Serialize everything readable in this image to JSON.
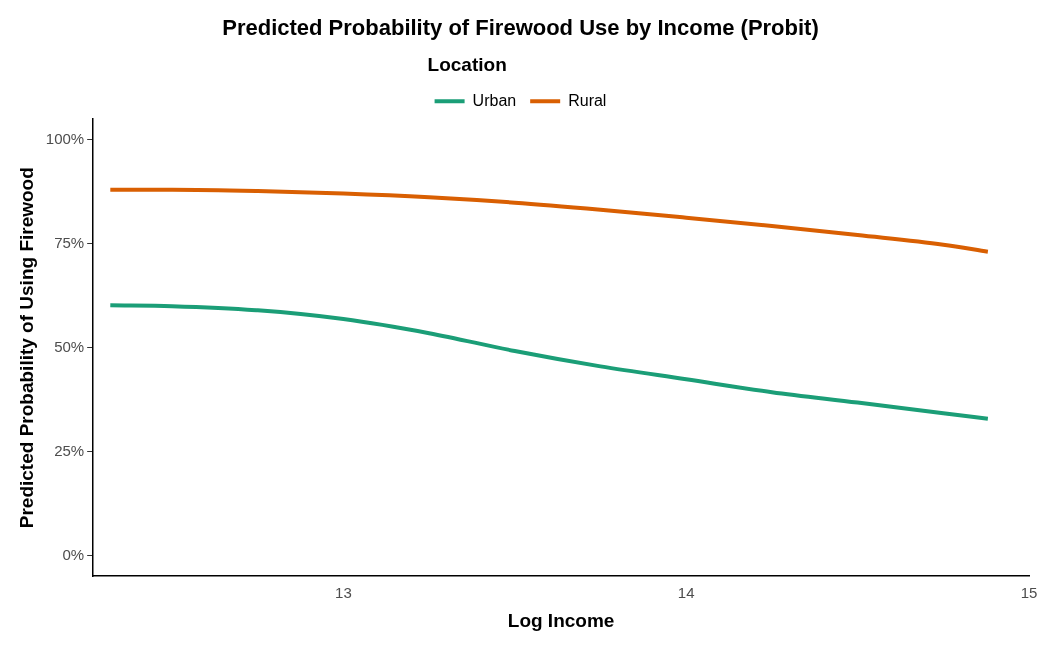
{
  "chart_data": {
    "type": "line",
    "title": "Predicted Probability of Firewood Use by Income (Probit)",
    "xlabel": "Log Income",
    "ylabel": "Predicted Probability of Using Firewood",
    "legend_title": "Location",
    "legend": "top",
    "grid": false,
    "marker": "none",
    "line_style": "solid",
    "xlim": [
      12.27,
      15.0
    ],
    "xticks": [
      13,
      14,
      15
    ],
    "ylim": [
      -5,
      105
    ],
    "yticks": [
      {
        "value": 0,
        "label": "0%"
      },
      {
        "value": 25,
        "label": "25%"
      },
      {
        "value": 50,
        "label": "50%"
      },
      {
        "value": 75,
        "label": "75%"
      },
      {
        "value": 100,
        "label": "100%"
      }
    ],
    "x": [
      12.32,
      12.5,
      12.75,
      13,
      13.25,
      13.5,
      13.75,
      14,
      14.25,
      14.5,
      14.75,
      14.88
    ],
    "series": [
      {
        "name": "Urban",
        "color": "#1b9e77",
        "values": [
          60.2,
          60.0,
          59.0,
          56.9,
          53.5,
          49.2,
          45.5,
          42.4,
          39.3,
          36.8,
          34.2,
          32.9
        ]
      },
      {
        "name": "Rural",
        "color": "#d95f02",
        "values": [
          88.0,
          88.0,
          87.7,
          87.1,
          86.2,
          84.9,
          83.2,
          81.3,
          79.3,
          77.1,
          74.8,
          73.1
        ]
      }
    ]
  }
}
